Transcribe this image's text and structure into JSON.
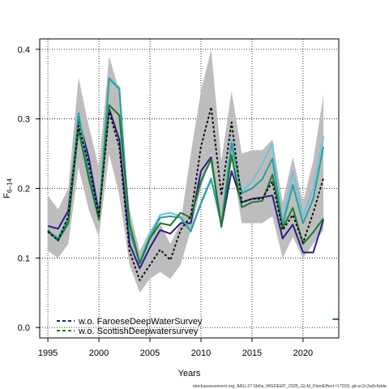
{
  "chart_data": {
    "type": "line",
    "xlabel": "Years",
    "ylabel_main": "F",
    "ylabel_sub": "6–14",
    "xlim": [
      1994.2,
      2023.5
    ],
    "ylim": [
      -0.015,
      0.415
    ],
    "x_ticks": [
      1995,
      2000,
      2005,
      2010,
      2015,
      2020
    ],
    "y_ticks": [
      0.0,
      0.1,
      0.2,
      0.3,
      0.4
    ],
    "y_tick_labels": [
      "0.0",
      "0.1",
      "0.2",
      "0.3",
      "0.4"
    ],
    "grid": "dotted",
    "legend_position": "bottom-left",
    "footer": "stockassessment.org, ARU.27.5b6a_WGDEEP_2025_GLM_FleetEffect r17203, git:ec2c2a0c6dde",
    "x": [
      1995,
      1996,
      1997,
      1998,
      1999,
      2000,
      2001,
      2002,
      2003,
      2004,
      2005,
      2006,
      2007,
      2008,
      2009,
      2010,
      2011,
      2012,
      2013,
      2014,
      2015,
      2016,
      2017,
      2018,
      2019,
      2020,
      2021,
      2022
    ],
    "band": {
      "upper": [
        0.19,
        0.17,
        0.2,
        0.36,
        0.29,
        0.23,
        0.39,
        0.34,
        0.17,
        0.11,
        0.14,
        0.15,
        0.12,
        0.15,
        0.25,
        0.34,
        0.4,
        0.24,
        0.34,
        0.25,
        0.255,
        0.255,
        0.27,
        0.18,
        0.245,
        0.18,
        0.24,
        0.335
      ],
      "lower": [
        0.11,
        0.1,
        0.12,
        0.23,
        0.17,
        0.13,
        0.25,
        0.19,
        0.09,
        0.05,
        0.07,
        0.08,
        0.07,
        0.09,
        0.14,
        0.2,
        0.25,
        0.14,
        0.24,
        0.15,
        0.15,
        0.15,
        0.16,
        0.1,
        0.13,
        0.1,
        0.12,
        0.14
      ]
    },
    "series": [
      {
        "name": "",
        "color": "#2b1b8c",
        "width": 2,
        "values": [
          0.146,
          0.142,
          0.168,
          0.3,
          0.245,
          0.165,
          0.315,
          0.27,
          0.12,
          0.085,
          0.115,
          0.14,
          0.135,
          0.15,
          0.15,
          0.225,
          0.245,
          0.145,
          0.225,
          0.18,
          0.185,
          0.187,
          0.19,
          0.128,
          0.148,
          0.108,
          0.108,
          0.155
        ]
      },
      {
        "name": "",
        "color": "#6cc3e0",
        "width": 2,
        "values": [
          0.138,
          0.13,
          0.157,
          0.31,
          0.225,
          0.16,
          0.36,
          0.345,
          0.14,
          0.095,
          0.135,
          0.162,
          0.165,
          0.16,
          0.14,
          0.18,
          0.215,
          0.15,
          0.27,
          0.195,
          0.21,
          0.235,
          0.265,
          0.15,
          0.225,
          0.16,
          0.2,
          0.275
        ]
      },
      {
        "name": "",
        "color": "#2c9f98",
        "width": 2,
        "values": [
          0.137,
          0.128,
          0.155,
          0.308,
          0.223,
          0.158,
          0.358,
          0.343,
          0.138,
          0.093,
          0.13,
          0.158,
          0.16,
          0.158,
          0.138,
          0.178,
          0.213,
          0.148,
          0.265,
          0.193,
          0.2,
          0.213,
          0.243,
          0.147,
          0.205,
          0.15,
          0.185,
          0.26
        ]
      },
      {
        "name": "w.o. ScottishDeepwatersurvey",
        "color": "#1b7a2d",
        "width": 2,
        "values": [
          0.14,
          0.125,
          0.15,
          0.285,
          0.215,
          0.155,
          0.32,
          0.305,
          0.15,
          0.092,
          0.128,
          0.15,
          0.147,
          0.165,
          0.158,
          0.21,
          0.242,
          0.145,
          0.248,
          0.173,
          0.18,
          0.182,
          0.22,
          0.143,
          0.172,
          0.12,
          0.137,
          0.157
        ]
      },
      {
        "name": "w.o. FaroeseDeepWaterSurvey",
        "color": "#111111",
        "width": 2,
        "dashed": true,
        "values": [
          0.138,
          0.125,
          0.16,
          0.29,
          0.235,
          0.16,
          0.31,
          0.26,
          0.11,
          0.068,
          0.09,
          0.112,
          0.097,
          0.14,
          0.16,
          0.26,
          0.317,
          0.19,
          0.295,
          0.18,
          0.185,
          0.185,
          0.21,
          0.14,
          0.162,
          0.122,
          0.165,
          0.215
        ]
      }
    ],
    "legend": [
      {
        "label": "w.o. FaroeseDeepWaterSurvey",
        "color": "#1a237e",
        "dashed": true
      },
      {
        "label": "w.o. ScottishDeepwatersurvey",
        "color": "#1b7a2d",
        "dashed": true
      }
    ],
    "edge_marker": {
      "x_start": 2022.9,
      "x_end": 2023.5,
      "y": 0.012,
      "color": "#1b7a2d"
    }
  }
}
